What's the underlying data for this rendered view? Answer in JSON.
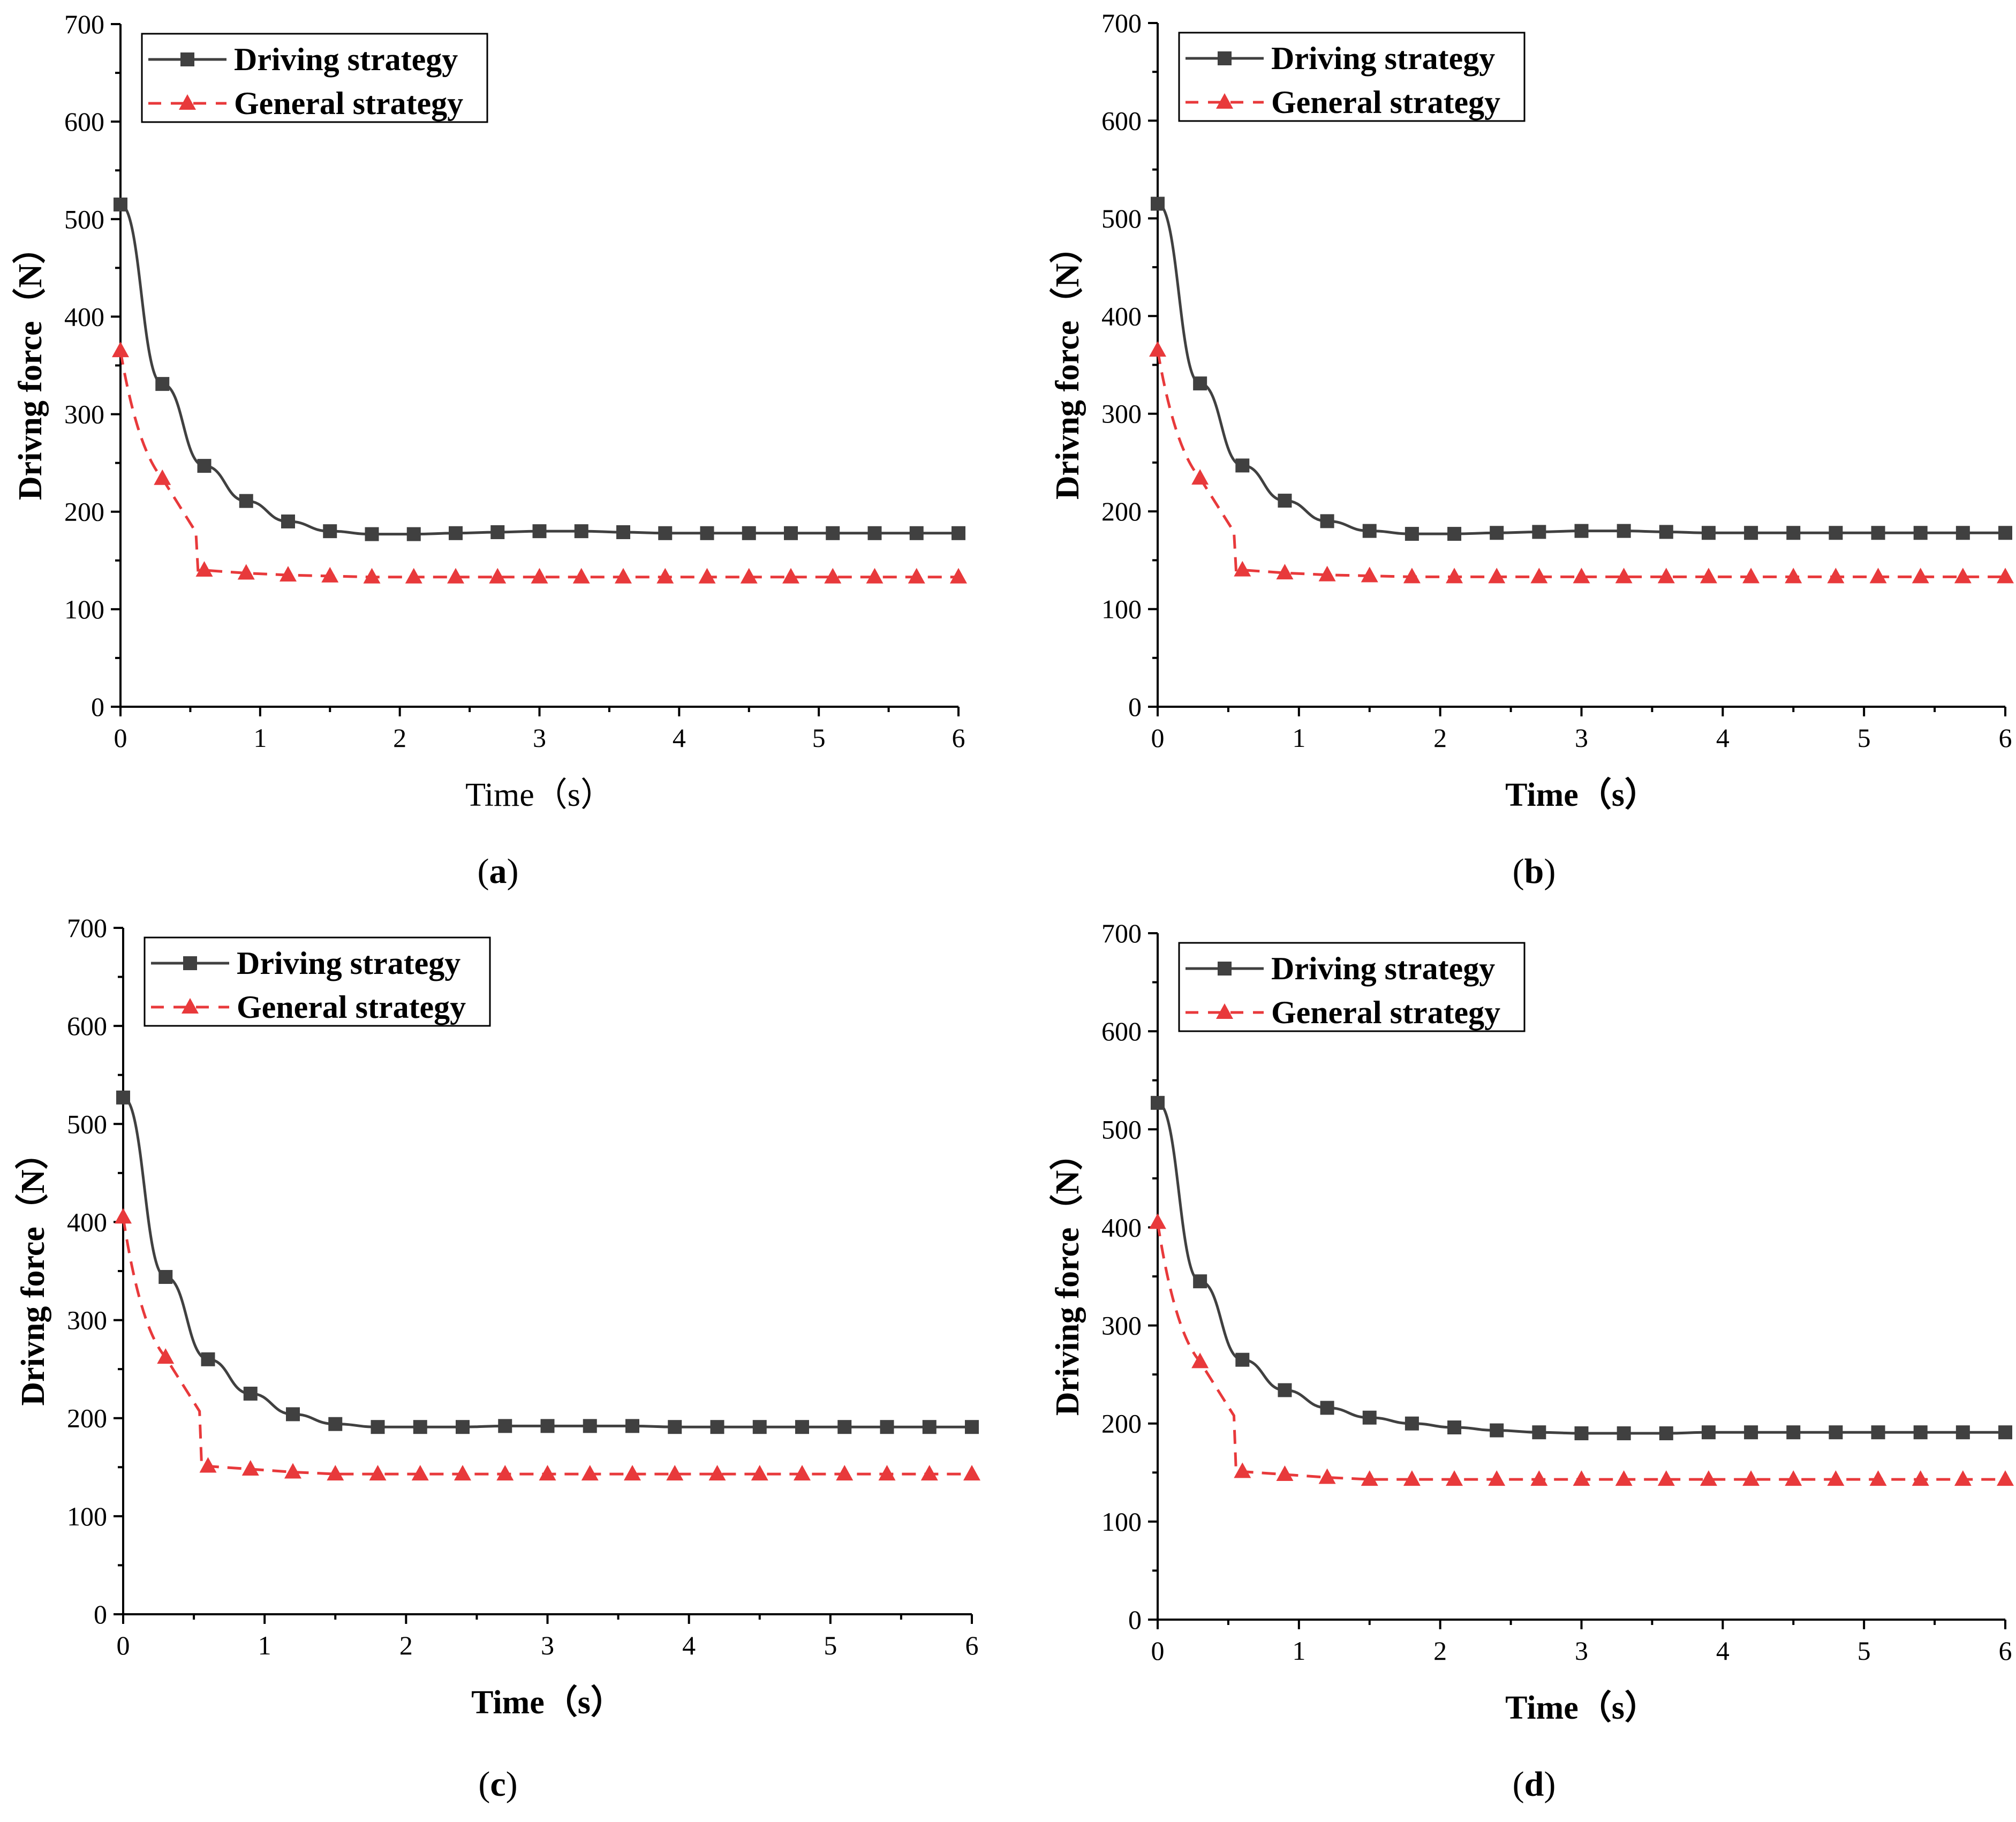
{
  "colors": {
    "driving": "#404040",
    "general": "#e8393b",
    "axis": "#000000",
    "legend_border": "#000000"
  },
  "chart_data": [
    {
      "type": "line",
      "caption": "a",
      "xlabel": "Time",
      "xunit": "（s）",
      "ylabel": "Drivng force（N）",
      "xlim": [
        0,
        6
      ],
      "ylim": [
        0,
        700
      ],
      "xticks": [
        0,
        1,
        2,
        3,
        4,
        5,
        6
      ],
      "yticks": [
        0,
        100,
        200,
        300,
        400,
        500,
        600,
        700
      ],
      "legend_placement": "top-left",
      "xlabel_bold": false,
      "series": [
        {
          "name": "Driving strategy",
          "marker": "square",
          "style": "solid",
          "color_key": "driving",
          "x": [
            0,
            0.3,
            0.6,
            0.9,
            1.2,
            1.5,
            1.8,
            2.1,
            2.4,
            2.7,
            3.0,
            3.3,
            3.6,
            3.9,
            4.2,
            4.5,
            4.8,
            5.1,
            5.4,
            5.7,
            6.0
          ],
          "y": [
            515,
            331,
            247,
            211,
            190,
            180,
            177,
            177,
            178,
            179,
            180,
            180,
            179,
            178,
            178,
            178,
            178,
            178,
            178,
            178,
            178
          ]
        },
        {
          "name": "General strategy",
          "marker": "triangle",
          "style": "dashed",
          "color_key": "general",
          "x": [
            0,
            0.3,
            0.6,
            0.9,
            1.2,
            1.5,
            1.8,
            2.1,
            2.4,
            2.7,
            3.0,
            3.3,
            3.6,
            3.9,
            4.2,
            4.5,
            4.8,
            5.1,
            5.4,
            5.7,
            6.0
          ],
          "y": [
            365,
            234,
            140,
            137,
            135,
            134,
            133,
            133,
            133,
            133,
            133,
            133,
            133,
            133,
            133,
            133,
            133,
            133,
            133,
            133,
            133
          ]
        }
      ]
    },
    {
      "type": "line",
      "caption": "b",
      "xlabel": "Time",
      "xunit": "（s）",
      "ylabel": "Drivng force（N）",
      "xlim": [
        0,
        6
      ],
      "ylim": [
        0,
        700
      ],
      "xticks": [
        0,
        1,
        2,
        3,
        4,
        5,
        6
      ],
      "yticks": [
        0,
        100,
        200,
        300,
        400,
        500,
        600,
        700
      ],
      "legend_placement": "top-left",
      "xlabel_bold": true,
      "series": [
        {
          "name": "Driving strategy",
          "marker": "square",
          "style": "solid",
          "color_key": "driving",
          "x": [
            0,
            0.3,
            0.6,
            0.9,
            1.2,
            1.5,
            1.8,
            2.1,
            2.4,
            2.7,
            3.0,
            3.3,
            3.6,
            3.9,
            4.2,
            4.5,
            4.8,
            5.1,
            5.4,
            5.7,
            6.0
          ],
          "y": [
            515,
            331,
            247,
            211,
            190,
            180,
            177,
            177,
            178,
            179,
            180,
            180,
            179,
            178,
            178,
            178,
            178,
            178,
            178,
            178,
            178
          ]
        },
        {
          "name": "General strategy",
          "marker": "triangle",
          "style": "dashed",
          "color_key": "general",
          "x": [
            0,
            0.3,
            0.6,
            0.9,
            1.2,
            1.5,
            1.8,
            2.1,
            2.4,
            2.7,
            3.0,
            3.3,
            3.6,
            3.9,
            4.2,
            4.5,
            4.8,
            5.1,
            5.4,
            5.7,
            6.0
          ],
          "y": [
            365,
            234,
            140,
            137,
            135,
            134,
            133,
            133,
            133,
            133,
            133,
            133,
            133,
            133,
            133,
            133,
            133,
            133,
            133,
            133,
            133
          ]
        }
      ]
    },
    {
      "type": "line",
      "caption": "c",
      "xlabel": "Time",
      "xunit": "（s）",
      "ylabel": "Drivng force（N）",
      "xlim": [
        0,
        6
      ],
      "ylim": [
        0,
        700
      ],
      "xticks": [
        0,
        1,
        2,
        3,
        4,
        5,
        6
      ],
      "yticks": [
        0,
        100,
        200,
        300,
        400,
        500,
        600,
        700
      ],
      "legend_placement": "top-left",
      "xlabel_bold": true,
      "series": [
        {
          "name": "Driving strategy",
          "marker": "square",
          "style": "solid",
          "color_key": "driving",
          "x": [
            0,
            0.3,
            0.6,
            0.9,
            1.2,
            1.5,
            1.8,
            2.1,
            2.4,
            2.7,
            3.0,
            3.3,
            3.6,
            3.9,
            4.2,
            4.5,
            4.8,
            5.1,
            5.4,
            5.7,
            6.0
          ],
          "y": [
            527,
            344,
            260,
            225,
            204,
            194,
            191,
            191,
            191,
            192,
            192,
            192,
            192,
            191,
            191,
            191,
            191,
            191,
            191,
            191,
            191
          ]
        },
        {
          "name": "General strategy",
          "marker": "triangle",
          "style": "dashed",
          "color_key": "general",
          "x": [
            0,
            0.3,
            0.6,
            0.9,
            1.2,
            1.5,
            1.8,
            2.1,
            2.4,
            2.7,
            3.0,
            3.3,
            3.6,
            3.9,
            4.2,
            4.5,
            4.8,
            5.1,
            5.4,
            5.7,
            6.0
          ],
          "y": [
            405,
            262,
            151,
            148,
            145,
            143,
            143,
            143,
            143,
            143,
            143,
            143,
            143,
            143,
            143,
            143,
            143,
            143,
            143,
            143,
            143
          ]
        }
      ]
    },
    {
      "type": "line",
      "caption": "d",
      "xlabel": "Time",
      "xunit": "（s）",
      "ylabel": "Driving force（N）",
      "xlim": [
        0,
        6
      ],
      "ylim": [
        0,
        700
      ],
      "xticks": [
        0,
        1,
        2,
        3,
        4,
        5,
        6
      ],
      "yticks": [
        0,
        100,
        200,
        300,
        400,
        500,
        600,
        700
      ],
      "legend_placement": "top-left",
      "xlabel_bold": true,
      "series": [
        {
          "name": "Driving strategy",
          "marker": "square",
          "style": "solid",
          "color_key": "driving",
          "x": [
            0,
            0.3,
            0.6,
            0.9,
            1.2,
            1.5,
            1.8,
            2.1,
            2.4,
            2.7,
            3.0,
            3.3,
            3.6,
            3.9,
            4.2,
            4.5,
            4.8,
            5.1,
            5.4,
            5.7,
            6.0
          ],
          "y": [
            527,
            345,
            265,
            234,
            216,
            206,
            200,
            196,
            193,
            191,
            190,
            190,
            190,
            191,
            191,
            191,
            191,
            191,
            191,
            191,
            191
          ]
        },
        {
          "name": "General strategy",
          "marker": "triangle",
          "style": "dashed",
          "color_key": "general",
          "x": [
            0,
            0.3,
            0.6,
            0.9,
            1.2,
            1.5,
            1.8,
            2.1,
            2.4,
            2.7,
            3.0,
            3.3,
            3.6,
            3.9,
            4.2,
            4.5,
            4.8,
            5.1,
            5.4,
            5.7,
            6.0
          ],
          "y": [
            405,
            263,
            151,
            148,
            145,
            143,
            143,
            143,
            143,
            143,
            143,
            143,
            143,
            143,
            143,
            143,
            143,
            143,
            143,
            143,
            143
          ]
        }
      ]
    }
  ]
}
